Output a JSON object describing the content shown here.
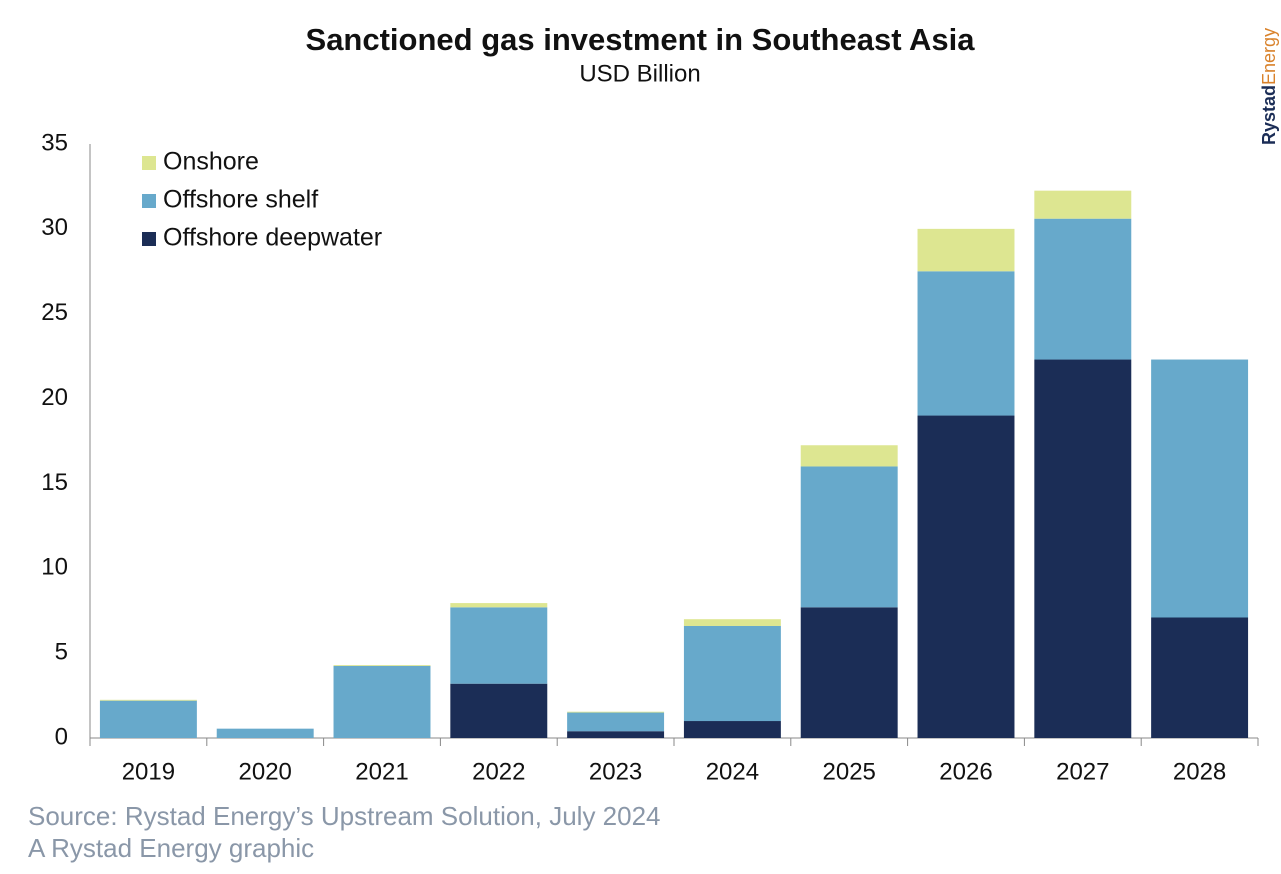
{
  "chart_data": {
    "type": "stacked_bar",
    "title": "Sanctioned gas investment in Southeast Asia",
    "subtitle": "USD Billion",
    "categories": [
      "2019",
      "2020",
      "2021",
      "2022",
      "2023",
      "2024",
      "2025",
      "2026",
      "2027",
      "2028"
    ],
    "series": [
      {
        "name": "Offshore deepwater",
        "color": "#1b2d56",
        "values": [
          0,
          0,
          0,
          3.2,
          0.4,
          1.0,
          7.7,
          19.0,
          22.3,
          7.1
        ]
      },
      {
        "name": "Offshore shelf",
        "color": "#67a9cb",
        "values": [
          2.2,
          0.55,
          4.25,
          4.5,
          1.1,
          5.6,
          8.3,
          8.5,
          8.3,
          15.2
        ]
      },
      {
        "name": "Onshore",
        "color": "#dde691",
        "values": [
          0.05,
          0,
          0.05,
          0.25,
          0.05,
          0.4,
          1.25,
          2.5,
          1.65,
          0
        ]
      }
    ],
    "ylim": [
      0,
      35
    ],
    "yticks": [
      0,
      5,
      10,
      15,
      20,
      25,
      30,
      35
    ],
    "grid": false,
    "legend": "top-left",
    "source": "Source: Rystad Energy’s Upstream Solution, July 2024",
    "credit": "A Rystad Energy graphic",
    "brand": [
      "Rystad",
      "Energy"
    ]
  }
}
